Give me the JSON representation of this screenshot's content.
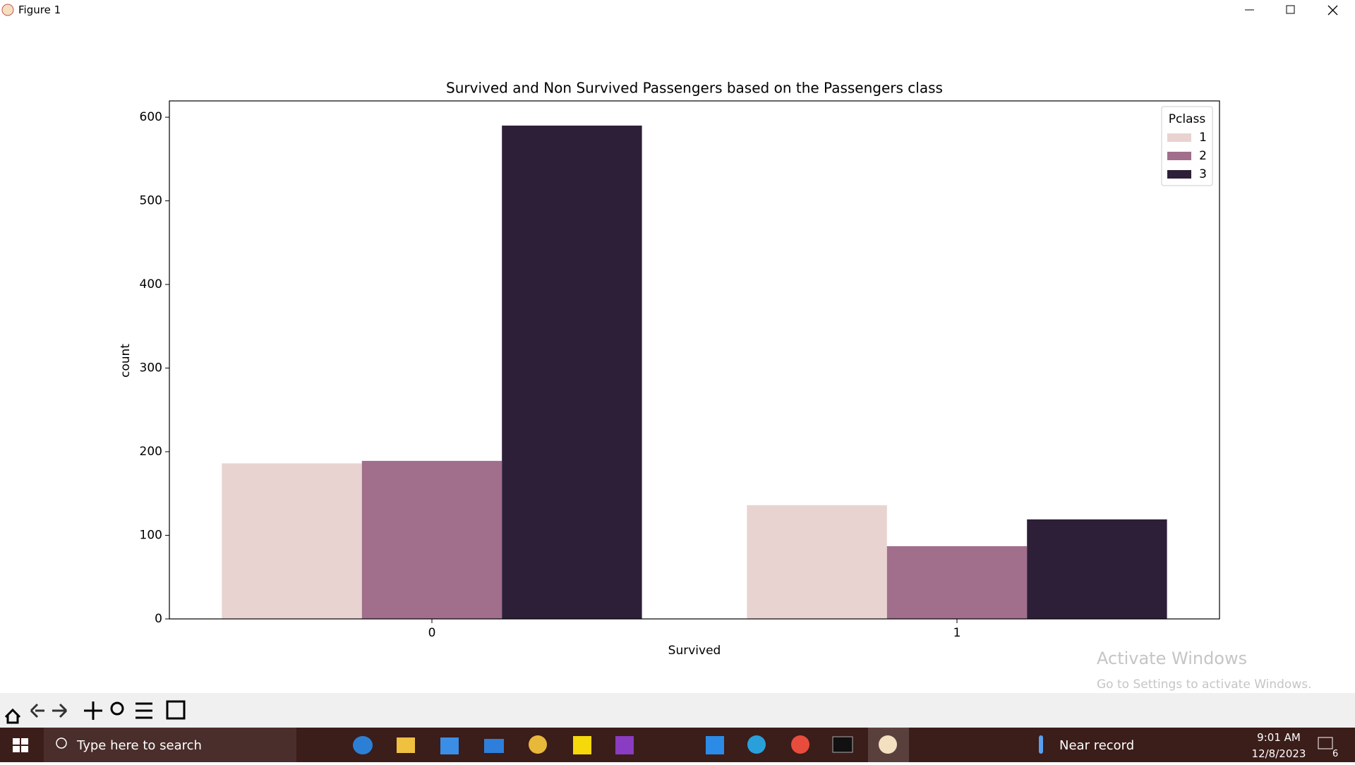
{
  "window": {
    "title": "Figure 1",
    "watermark_title": "Activate Windows",
    "watermark_text": "Go to Settings to activate Windows."
  },
  "taskbar": {
    "search": "Type here to search",
    "weather": "Near record",
    "time": "9:01 AM",
    "date": "12/8/2023",
    "notifications": "6"
  },
  "chart_data": {
    "type": "bar",
    "title": "Survived and Non Survived Passengers based on the Passengers class",
    "x_label": "Survived",
    "y_label": "count",
    "categories": [
      "0",
      "1"
    ],
    "legend_title": "Pclass",
    "legend_position": "upper right",
    "series": [
      {
        "name": "1",
        "color": "#e8d3d0",
        "values": [
          186,
          136
        ]
      },
      {
        "name": "2",
        "color": "#a16e8c",
        "values": [
          189,
          87
        ]
      },
      {
        "name": "3",
        "color": "#2d1f38",
        "values": [
          590,
          119
        ]
      }
    ],
    "ylim": [
      0,
      619.5
    ],
    "yticks": [
      0,
      100,
      200,
      300,
      400,
      500,
      600
    ],
    "grid": false
  }
}
